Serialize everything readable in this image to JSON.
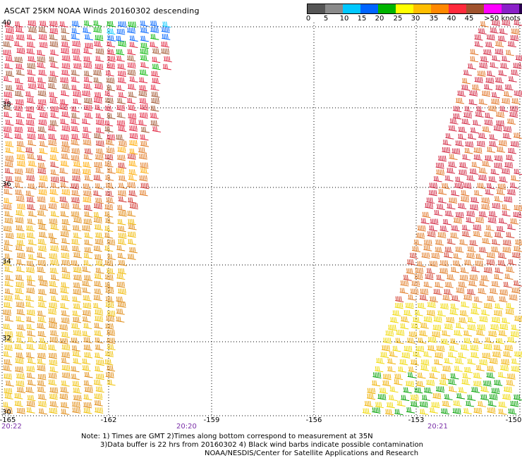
{
  "title": "ASCAT 25KM NOAA Winds 20160302 descending",
  "legend": {
    "colors": [
      "#555555",
      "#8a8a8a",
      "#00c8ff",
      "#0064ff",
      "#00b400",
      "#ffff00",
      "#ffbe00",
      "#ff8800",
      "#ff2a3c",
      "#a0522d",
      "#ff00ff",
      "#8a20c8",
      "#2a0050"
    ],
    "labels": [
      "0",
      "5",
      "10",
      "15",
      "20",
      "25",
      "30",
      "35",
      "40",
      "45",
      ">50 knots"
    ]
  },
  "lat_labels": [
    "40",
    "38",
    "36",
    "34",
    "32",
    "30"
  ],
  "lon_labels": [
    "-165",
    "-162",
    "-159",
    "-156",
    "-153",
    "-150"
  ],
  "times": [
    "20:22",
    "20:20",
    "20:21"
  ],
  "notes": {
    "line1": "Note: 1) Times are GMT 2)Times along bottom correspond to measurement at 35N",
    "line2": "3)Data buffer is 22 hrs from 20160302 4) Black wind barbs indicate possible contamination",
    "line3": "NOAA/NESDIS/Center for Satellite Applications and Research"
  }
}
